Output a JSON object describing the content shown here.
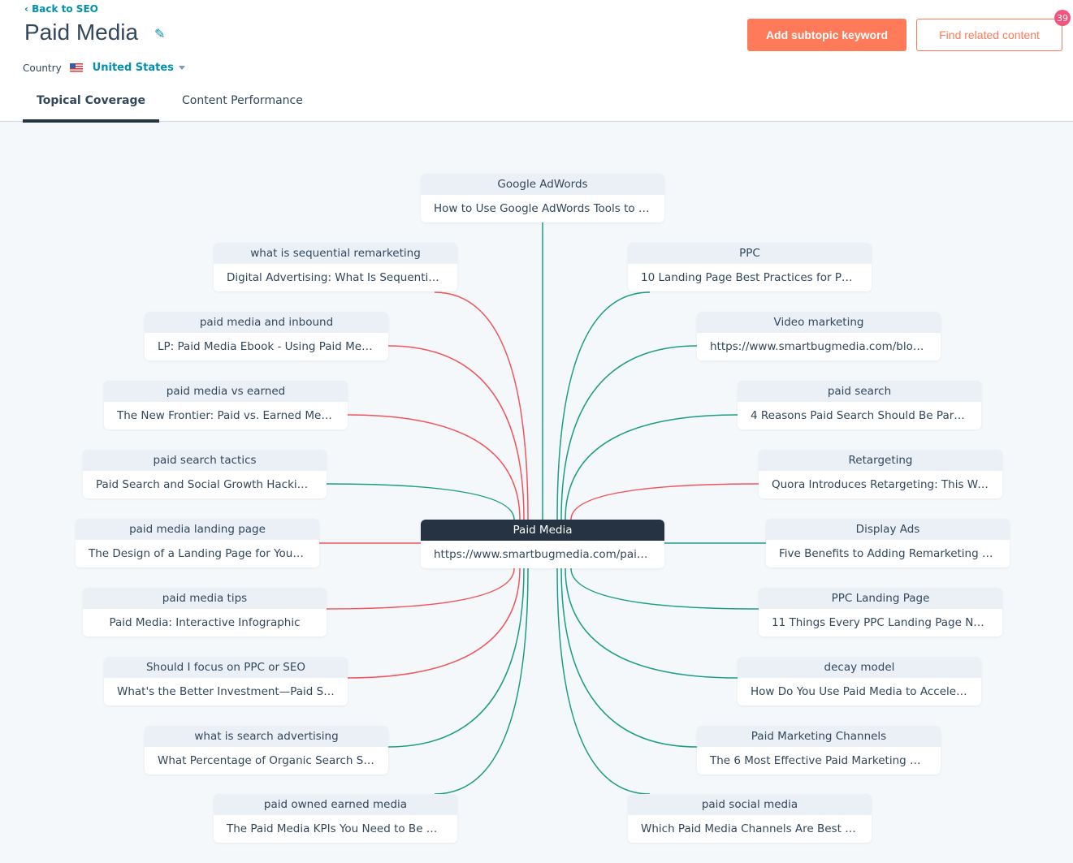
{
  "header": {
    "back_label": "Back to SEO",
    "title": "Paid Media",
    "country_label": "Country",
    "country_value": "United States",
    "add_button": "Add subtopic keyword",
    "find_button": "Find related content",
    "find_badge": "39"
  },
  "tabs": [
    {
      "label": "Topical Coverage",
      "active": true
    },
    {
      "label": "Content Performance",
      "active": false
    }
  ],
  "colors": {
    "accent": "#ff7a59",
    "covered": "#1b9e83",
    "uncovered": "#f2545b",
    "center": "#253342"
  },
  "center": {
    "keyword": "Paid Media",
    "title": "https://www.smartbugmedia.com/paid-…"
  },
  "top": {
    "keyword": "Google AdWords",
    "title": "How to Use Google AdWords Tools to R…",
    "status": "covered"
  },
  "left": [
    {
      "keyword": "what is sequential remarketing",
      "title": "Digital Advertising: What Is Sequential …",
      "status": "uncovered"
    },
    {
      "keyword": "paid media and inbound",
      "title": "LP: Paid Media Ebook - Using Paid Medi…",
      "status": "uncovered"
    },
    {
      "keyword": "paid media vs earned",
      "title": "The New Frontier: Paid vs. Earned Media",
      "status": "uncovered"
    },
    {
      "keyword": "paid search tactics",
      "title": "Paid Search and Social Growth Hacking …",
      "status": "covered"
    },
    {
      "keyword": "paid media landing page",
      "title": "The Design of a Landing Page for Your …",
      "status": "uncovered"
    },
    {
      "keyword": "paid media tips",
      "title": "Paid Media: Interactive Infographic",
      "status": "uncovered"
    },
    {
      "keyword": "Should I focus on PPC or SEO",
      "title": "What's the Better Investment—Paid Sear…",
      "status": "uncovered"
    },
    {
      "keyword": "what is search advertising",
      "title": "What Percentage of Organic Search Sh…",
      "status": "covered"
    },
    {
      "keyword": "paid owned earned media",
      "title": "The Paid Media KPIs You Need to Be M…",
      "status": "covered"
    }
  ],
  "right": [
    {
      "keyword": "PPC",
      "title": "10 Landing Page Best Practices for PPC …",
      "status": "covered"
    },
    {
      "keyword": "Video marketing",
      "title": "https://www.smartbugmedia.com/blog…",
      "status": "covered"
    },
    {
      "keyword": "paid search",
      "title": "4 Reasons Paid Search Should Be Part o…",
      "status": "covered"
    },
    {
      "keyword": "Retargeting",
      "title": "Quora Introduces Retargeting: This We…",
      "status": "uncovered"
    },
    {
      "keyword": "Display Ads",
      "title": "Five Benefits to Adding Remarketing to …",
      "status": "covered"
    },
    {
      "keyword": "PPC Landing Page",
      "title": "11 Things Every PPC Landing Page Needs",
      "status": "covered"
    },
    {
      "keyword": "decay model",
      "title": "How Do You Use Paid Media to Acceler…",
      "status": "covered"
    },
    {
      "keyword": "Paid Marketing Channels",
      "title": "The 6 Most Effective Paid Marketing Ch…",
      "status": "covered"
    },
    {
      "keyword": "paid social media",
      "title": "Which Paid Media Channels Are Best fo…",
      "status": "covered"
    }
  ]
}
